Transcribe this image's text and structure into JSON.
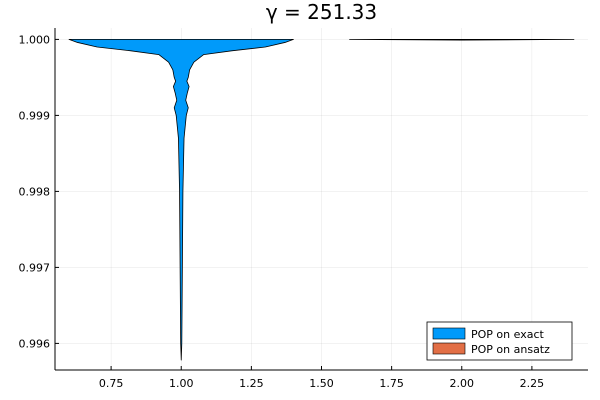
{
  "chart_data": {
    "type": "violin",
    "title": "γ = 251.33",
    "xlabel": "",
    "ylabel": "",
    "xlim": [
      0.55,
      2.45
    ],
    "ylim": [
      0.99565,
      1.00015
    ],
    "x_ticks": [
      0.75,
      1.0,
      1.25,
      1.5,
      1.75,
      2.0,
      2.25
    ],
    "x_tick_labels": [
      "0.75",
      "1.00",
      "1.25",
      "1.50",
      "1.75",
      "2.00",
      "2.25"
    ],
    "y_ticks": [
      0.996,
      0.997,
      0.998,
      0.999,
      1.0
    ],
    "y_tick_labels": [
      "0.996",
      "0.997",
      "0.998",
      "0.999",
      "1.000"
    ],
    "grid": true,
    "legend_position": "bottom-right",
    "series": [
      {
        "name": "POP on exact",
        "color": "#009AFA",
        "x_center": 1.0,
        "profile": [
          [
            1.0,
            0.4
          ],
          [
            0.99996,
            0.37
          ],
          [
            0.9999,
            0.3
          ],
          [
            0.99985,
            0.18
          ],
          [
            0.9998,
            0.08
          ],
          [
            0.9997,
            0.045
          ],
          [
            0.9996,
            0.03
          ],
          [
            0.9995,
            0.025
          ],
          [
            0.99945,
            0.02
          ],
          [
            0.99938,
            0.028
          ],
          [
            0.9993,
            0.022
          ],
          [
            0.9992,
            0.016
          ],
          [
            0.9991,
            0.025
          ],
          [
            0.999,
            0.018
          ],
          [
            0.9987,
            0.01
          ],
          [
            0.998,
            0.006
          ],
          [
            0.997,
            0.004
          ],
          [
            0.996,
            0.002
          ],
          [
            0.99578,
            0.0
          ]
        ]
      },
      {
        "name": "POP on ansatz",
        "color": "#E26F46",
        "x_center": 2.0,
        "profile": [
          [
            1.0,
            0.4
          ],
          [
            0.99999,
            0.0
          ]
        ]
      }
    ]
  }
}
